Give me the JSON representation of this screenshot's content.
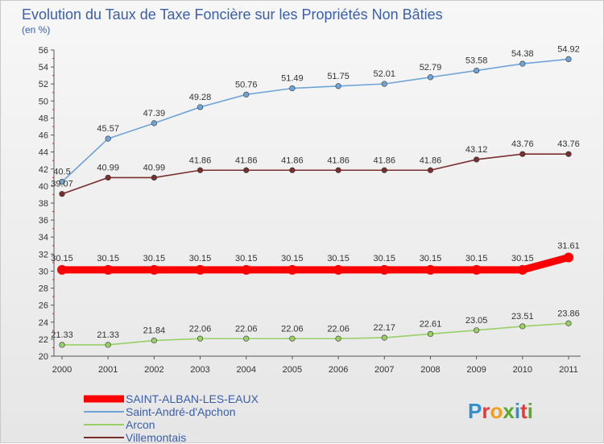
{
  "chart_data": {
    "type": "line",
    "title": "Evolution du Taux de Taxe Foncière sur les Propriétés Non Bâties",
    "subtitle": "(en %)",
    "xlabel": "",
    "ylabel": "(en %)",
    "ylim": [
      20,
      56
    ],
    "y_ticks": [
      20,
      22,
      24,
      26,
      28,
      30,
      32,
      34,
      36,
      38,
      40,
      42,
      44,
      46,
      48,
      50,
      52,
      54,
      56
    ],
    "categories": [
      "2000",
      "2001",
      "2002",
      "2003",
      "2004",
      "2005",
      "2006",
      "2007",
      "2008",
      "2009",
      "2010",
      "2011"
    ],
    "grid": false,
    "legend_position": "bottom-left",
    "series": [
      {
        "name": "SAINT-ALBAN-LES-EAUX",
        "color": "#ff0000",
        "values": [
          30.15,
          30.15,
          30.15,
          30.15,
          30.15,
          30.15,
          30.15,
          30.15,
          30.15,
          30.15,
          30.15,
          31.61
        ],
        "labels": [
          "30.15",
          "30.15",
          "30.15",
          "30.15",
          "30.15",
          "30.15",
          "30.15",
          "30.15",
          "30.15",
          "30.15",
          "30.15",
          "31.61"
        ],
        "emphasis": true
      },
      {
        "name": "Saint-André-d'Apchon",
        "color": "#6fa4d8",
        "values": [
          40.5,
          45.57,
          47.39,
          49.28,
          50.76,
          51.49,
          51.75,
          52.01,
          52.79,
          53.58,
          54.38,
          54.92
        ],
        "labels": [
          "40.5",
          "45.57",
          "47.39",
          "49.28",
          "50.76",
          "51.49",
          "51.75",
          "52.01",
          "52.79",
          "53.58",
          "54.38",
          "54.92"
        ],
        "emphasis": false
      },
      {
        "name": "Arcon",
        "color": "#99d066",
        "values": [
          21.33,
          21.33,
          21.84,
          22.06,
          22.06,
          22.06,
          22.06,
          22.17,
          22.61,
          23.05,
          23.51,
          23.86
        ],
        "labels": [
          "21.33",
          "21.33",
          "21.84",
          "22.06",
          "22.06",
          "22.06",
          "22.06",
          "22.17",
          "22.61",
          "23.05",
          "23.51",
          "23.86"
        ],
        "emphasis": false
      },
      {
        "name": "Villemontais",
        "color": "#7a2f2f",
        "values": [
          39.07,
          40.99,
          40.99,
          41.86,
          41.86,
          41.86,
          41.86,
          41.86,
          41.86,
          43.12,
          43.76,
          43.76
        ],
        "labels": [
          "39.07",
          "40.99",
          "40.99",
          "41.86",
          "41.86",
          "41.86",
          "41.86",
          "41.86",
          "41.86",
          "43.12",
          "43.76",
          "43.76"
        ],
        "emphasis": false
      }
    ]
  },
  "logo": {
    "text": "Proxiti",
    "letters": [
      "P",
      "r",
      "o",
      "x",
      "i",
      "t",
      "i"
    ],
    "colors": [
      "#2f8fd0",
      "#e23b3b",
      "#f0a020",
      "#5aa832",
      "#2f8fd0",
      "#e23b3b",
      "#5aa832"
    ]
  }
}
